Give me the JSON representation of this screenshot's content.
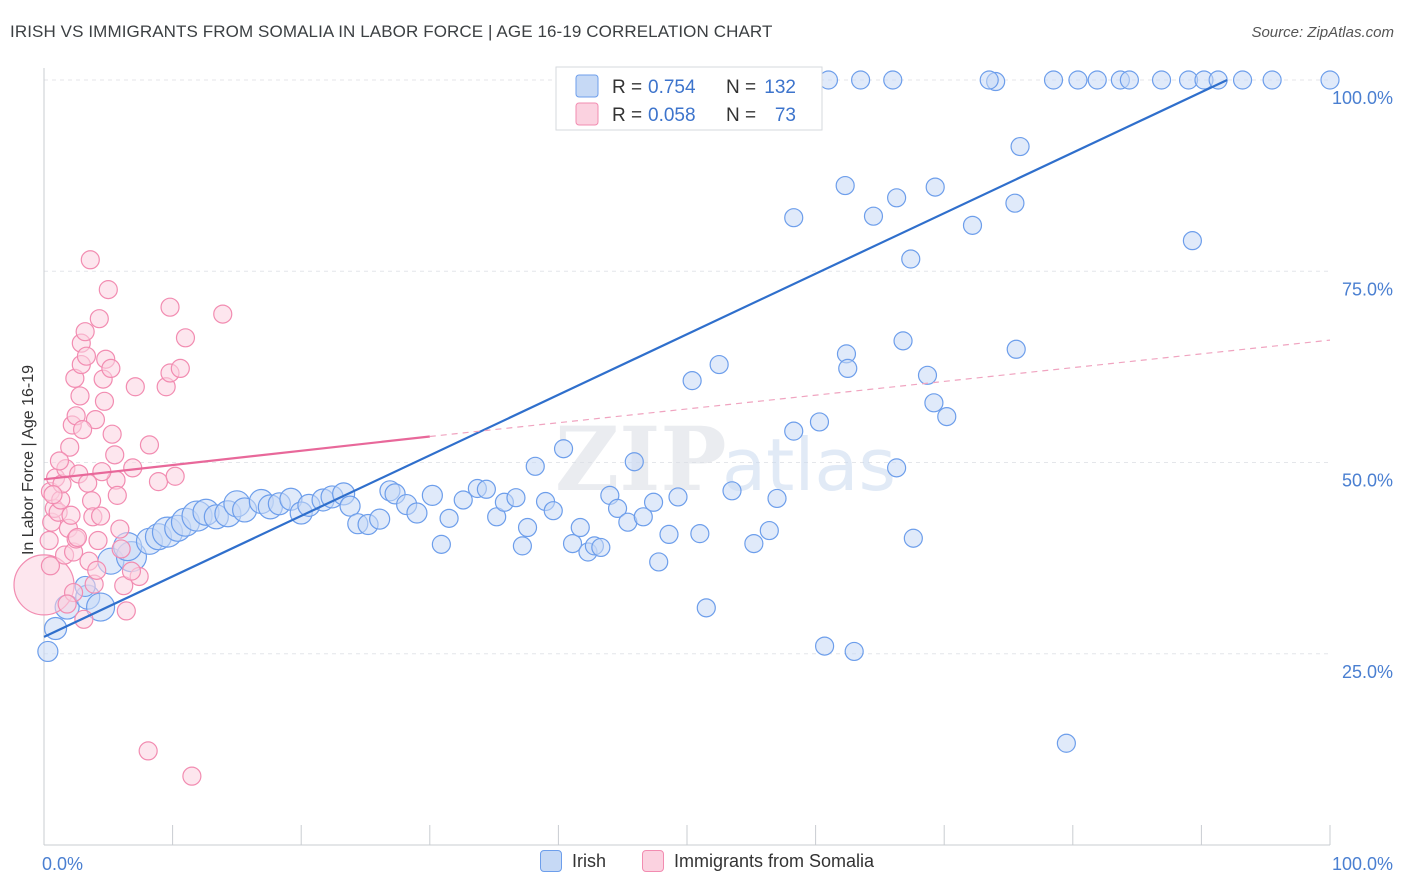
{
  "header": {
    "title": "IRISH VS IMMIGRANTS FROM SOMALIA IN LABOR FORCE | AGE 16-19 CORRELATION CHART",
    "source": "Source: ZipAtlas.com"
  },
  "watermark": {
    "zip": "ZIP",
    "atlas": "atlas"
  },
  "legend": {
    "entries": [
      {
        "r_label": "R = ",
        "r_value": "0.754",
        "n_label": "N = ",
        "n_value": "132",
        "color": "#6d9eeb"
      },
      {
        "r_label": "R = ",
        "r_value": "0.058",
        "n_label": "N = ",
        "n_value": "73",
        "color": "#f28cb1"
      }
    ]
  },
  "chart_data": {
    "type": "scatter",
    "title": "IRISH VS IMMIGRANTS FROM SOMALIA IN LABOR FORCE | AGE 16-19 CORRELATION CHART",
    "xlabel": "",
    "ylabel": "In Labor Force | Age 16-19",
    "xlim": [
      0,
      100
    ],
    "ylim": [
      0,
      100
    ],
    "x_tick_labels": [
      "0.0%",
      "100.0%"
    ],
    "y_tick_labels": [
      "25.0%",
      "50.0%",
      "75.0%",
      "100.0%"
    ],
    "y_ticks": [
      25,
      50,
      75,
      100
    ],
    "grid": true,
    "legend_position": "top-center",
    "series": [
      {
        "name": "Irish",
        "color": "#6d9eeb",
        "trend": {
          "x": [
            0,
            92
          ],
          "y": [
            27.2,
            100
          ],
          "style": "solid"
        },
        "points": [
          [
            0.3,
            25.3,
            10
          ],
          [
            0.9,
            28.3,
            11
          ],
          [
            1.8,
            31.1,
            12
          ],
          [
            3.4,
            32.4,
            12
          ],
          [
            4.4,
            31.1,
            14
          ],
          [
            3.2,
            33.8,
            10
          ],
          [
            5.2,
            37.1,
            13
          ],
          [
            6.8,
            37.7,
            15
          ],
          [
            6.5,
            39.0,
            14
          ],
          [
            8.2,
            39.7,
            13
          ],
          [
            8.9,
            40.3,
            13
          ],
          [
            9.6,
            40.9,
            15
          ],
          [
            10.4,
            41.4,
            13
          ],
          [
            11.0,
            42.2,
            14
          ],
          [
            11.9,
            43.0,
            15
          ],
          [
            12.6,
            43.5,
            13
          ],
          [
            13.4,
            42.9,
            12
          ],
          [
            14.3,
            43.3,
            13
          ],
          [
            15.0,
            44.6,
            13
          ],
          [
            15.6,
            43.8,
            12
          ],
          [
            16.9,
            44.9,
            12
          ],
          [
            17.6,
            44.2,
            12
          ],
          [
            18.3,
            44.6,
            11
          ],
          [
            19.2,
            45.2,
            11
          ],
          [
            20.0,
            43.4,
            11
          ],
          [
            20.6,
            44.4,
            11
          ],
          [
            21.7,
            45.1,
            11
          ],
          [
            22.4,
            45.5,
            11
          ],
          [
            23.3,
            45.9,
            11
          ],
          [
            23.8,
            44.3,
            10
          ],
          [
            24.4,
            42.0,
            10
          ],
          [
            25.2,
            41.9,
            10
          ],
          [
            26.1,
            42.6,
            10
          ],
          [
            26.9,
            46.3,
            10
          ],
          [
            27.3,
            45.9,
            10
          ],
          [
            28.2,
            44.5,
            10
          ],
          [
            29.0,
            43.4,
            10
          ],
          [
            30.2,
            45.7,
            10
          ],
          [
            30.9,
            39.3,
            9
          ],
          [
            31.5,
            42.7,
            9
          ],
          [
            32.6,
            45.1,
            9
          ],
          [
            33.7,
            46.6,
            9
          ],
          [
            34.4,
            46.5,
            9
          ],
          [
            35.2,
            42.9,
            9
          ],
          [
            35.8,
            44.8,
            9
          ],
          [
            36.7,
            45.4,
            9
          ],
          [
            37.2,
            39.1,
            9
          ],
          [
            37.6,
            41.5,
            9
          ],
          [
            38.2,
            49.5,
            9
          ],
          [
            39.0,
            44.9,
            9
          ],
          [
            39.6,
            43.7,
            9
          ],
          [
            40.4,
            51.8,
            9
          ],
          [
            41.1,
            39.4,
            9
          ],
          [
            41.7,
            41.5,
            9
          ],
          [
            42.3,
            38.3,
            9
          ],
          [
            42.8,
            39.1,
            9
          ],
          [
            43.3,
            38.9,
            9
          ],
          [
            44.0,
            45.7,
            9
          ],
          [
            44.6,
            44.0,
            9
          ],
          [
            45.4,
            42.2,
            9
          ],
          [
            45.9,
            50.1,
            9
          ],
          [
            46.6,
            42.9,
            9
          ],
          [
            47.4,
            44.8,
            9
          ],
          [
            47.8,
            37.0,
            9
          ],
          [
            48.6,
            40.6,
            9
          ],
          [
            49.3,
            45.5,
            9
          ],
          [
            50.4,
            60.7,
            9
          ],
          [
            51.0,
            40.7,
            9
          ],
          [
            51.5,
            31.0,
            9
          ],
          [
            52.5,
            62.8,
            9
          ],
          [
            53.5,
            46.3,
            9
          ],
          [
            55.2,
            39.4,
            9
          ],
          [
            56.4,
            41.1,
            9
          ],
          [
            57.0,
            45.3,
            9
          ],
          [
            58.3,
            54.1,
            9
          ],
          [
            60.7,
            26.0,
            9
          ],
          [
            63.0,
            25.3,
            9
          ],
          [
            60.3,
            55.3,
            9
          ],
          [
            62.4,
            64.2,
            9
          ],
          [
            62.5,
            62.3,
            9
          ],
          [
            66.3,
            49.3,
            9
          ],
          [
            66.8,
            65.9,
            9
          ],
          [
            67.6,
            40.1,
            9
          ],
          [
            68.7,
            61.4,
            9
          ],
          [
            69.2,
            57.8,
            9
          ],
          [
            70.2,
            56.0,
            9
          ],
          [
            75.6,
            64.8,
            9
          ],
          [
            72.2,
            81.0,
            9
          ],
          [
            75.5,
            83.9,
            9
          ],
          [
            75.9,
            91.3,
            9
          ],
          [
            74.0,
            99.8,
            9
          ],
          [
            78.5,
            100,
            9
          ],
          [
            80.4,
            100,
            9
          ],
          [
            81.9,
            100,
            9
          ],
          [
            83.7,
            100,
            9
          ],
          [
            84.4,
            100,
            9
          ],
          [
            86.9,
            100,
            9
          ],
          [
            89.0,
            100,
            9
          ],
          [
            90.2,
            100,
            9
          ],
          [
            91.3,
            100,
            9
          ],
          [
            93.2,
            100,
            9
          ],
          [
            95.5,
            100,
            9
          ],
          [
            100,
            100,
            9
          ],
          [
            79.5,
            13.3,
            9
          ],
          [
            62.3,
            86.2,
            9
          ],
          [
            69.3,
            86.0,
            9
          ],
          [
            66.3,
            84.6,
            9
          ],
          [
            58.3,
            82.0,
            9
          ],
          [
            64.5,
            82.2,
            9
          ],
          [
            67.4,
            76.6,
            9
          ],
          [
            89.3,
            79.0,
            9
          ],
          [
            63.5,
            100,
            9
          ],
          [
            54.7,
            100,
            9
          ],
          [
            56.2,
            100,
            9
          ],
          [
            57.4,
            100,
            9
          ],
          [
            58.9,
            100,
            9
          ],
          [
            61.0,
            100,
            9
          ],
          [
            53.2,
            100,
            9
          ],
          [
            49.3,
            100,
            9
          ],
          [
            51.1,
            100,
            9
          ],
          [
            51.7,
            98.0,
            9
          ],
          [
            53.9,
            96.2,
            9
          ],
          [
            44.5,
            100,
            9
          ],
          [
            45.7,
            100,
            9
          ],
          [
            46.3,
            100,
            9
          ],
          [
            47.4,
            100,
            9
          ],
          [
            48.1,
            100,
            9
          ],
          [
            50.2,
            100,
            9
          ],
          [
            55.0,
            100,
            9
          ],
          [
            59.5,
            100,
            9
          ],
          [
            66.0,
            100,
            9
          ],
          [
            73.5,
            100,
            9
          ]
        ]
      },
      {
        "name": "Immigrants from Somalia",
        "color": "#f28cb1",
        "trend": {
          "x": [
            0,
            30,
            100
          ],
          "y": [
            47.8,
            53.4,
            66.0
          ],
          "style": "solid-then-dashed"
        },
        "points": [
          [
            0,
            34,
            30
          ],
          [
            0.5,
            36.5,
            9
          ],
          [
            0.4,
            39.8,
            9
          ],
          [
            0.6,
            42.2,
            9
          ],
          [
            0.8,
            44.0,
            9
          ],
          [
            0.5,
            46.2,
            9
          ],
          [
            0.9,
            48.0,
            9
          ],
          [
            1.1,
            43.5,
            9
          ],
          [
            1.3,
            45.1,
            9
          ],
          [
            1.4,
            47.2,
            9
          ],
          [
            1.7,
            49.2,
            9
          ],
          [
            1.6,
            37.9,
            9
          ],
          [
            1.9,
            41.4,
            9
          ],
          [
            2.1,
            43.1,
            9
          ],
          [
            2.3,
            38.3,
            9
          ],
          [
            2.5,
            40.0,
            9
          ],
          [
            2.7,
            48.5,
            9
          ],
          [
            2.2,
            54.9,
            9
          ],
          [
            2.5,
            56.1,
            9
          ],
          [
            2.8,
            58.7,
            9
          ],
          [
            2.4,
            61.0,
            9
          ],
          [
            2.9,
            62.8,
            9
          ],
          [
            2.9,
            65.6,
            9
          ],
          [
            3.2,
            67.1,
            9
          ],
          [
            3.3,
            63.9,
            9
          ],
          [
            3.4,
            47.3,
            9
          ],
          [
            3.7,
            45.0,
            9
          ],
          [
            3.8,
            42.9,
            9
          ],
          [
            3.5,
            37.1,
            9
          ],
          [
            3.9,
            34.1,
            9
          ],
          [
            4.1,
            35.9,
            9
          ],
          [
            4.2,
            39.8,
            9
          ],
          [
            4.4,
            43.0,
            9
          ],
          [
            4.0,
            55.6,
            9
          ],
          [
            4.7,
            58.0,
            9
          ],
          [
            3.6,
            76.5,
            9
          ],
          [
            4.3,
            68.8,
            9
          ],
          [
            5.0,
            72.6,
            9
          ],
          [
            4.6,
            60.9,
            9
          ],
          [
            4.8,
            63.5,
            9
          ],
          [
            5.2,
            62.3,
            9
          ],
          [
            5.3,
            53.7,
            9
          ],
          [
            5.5,
            51.0,
            9
          ],
          [
            5.6,
            47.7,
            9
          ],
          [
            5.9,
            41.3,
            9
          ],
          [
            6.0,
            38.7,
            9
          ],
          [
            6.2,
            33.9,
            9
          ],
          [
            6.4,
            30.6,
            9
          ],
          [
            6.9,
            49.3,
            9
          ],
          [
            7.1,
            59.9,
            9
          ],
          [
            7.4,
            35.1,
            9
          ],
          [
            8.2,
            52.3,
            9
          ],
          [
            8.9,
            47.5,
            9
          ],
          [
            9.5,
            59.9,
            9
          ],
          [
            9.8,
            61.7,
            9
          ],
          [
            10.2,
            48.2,
            9
          ],
          [
            10.6,
            62.3,
            9
          ],
          [
            11.0,
            66.3,
            9
          ],
          [
            9.8,
            70.3,
            9
          ],
          [
            13.9,
            69.4,
            9
          ],
          [
            8.1,
            12.3,
            9
          ],
          [
            11.5,
            9.0,
            9
          ],
          [
            2.3,
            33.0,
            9
          ],
          [
            1.8,
            31.5,
            9
          ],
          [
            2.0,
            52.0,
            9
          ],
          [
            3.0,
            54.3,
            9
          ],
          [
            1.2,
            50.2,
            9
          ],
          [
            0.7,
            45.8,
            9
          ],
          [
            3.1,
            29.5,
            9
          ],
          [
            6.8,
            35.8,
            9
          ],
          [
            5.7,
            45.7,
            9
          ],
          [
            4.5,
            48.8,
            9
          ],
          [
            2.6,
            40.2,
            9
          ]
        ]
      }
    ]
  },
  "bottom_legend": [
    {
      "label": "Irish",
      "color": "#6d9eeb"
    },
    {
      "label": "Immigrants from Somalia",
      "color": "#f28cb1"
    }
  ]
}
